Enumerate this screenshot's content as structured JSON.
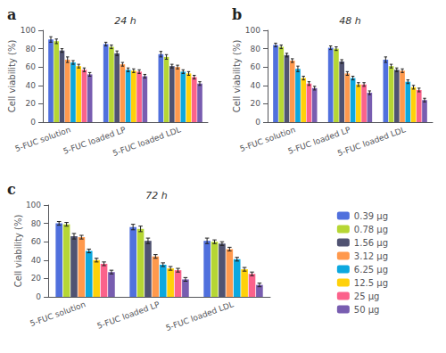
{
  "chart_data": [
    {
      "type": "bar",
      "title": "24 h",
      "annotations": [
        "a"
      ],
      "ylabel": "Cell viability (%)",
      "categories": [
        "5-FUC solution",
        "5-FUC loaded LP",
        "5-FUC loaded LDL"
      ],
      "series": [
        {
          "name": "0.39 μg",
          "values": [
            90,
            85,
            74
          ],
          "errors": [
            3,
            2,
            3
          ]
        },
        {
          "name": "0.78 μg",
          "values": [
            88,
            82,
            71
          ],
          "errors": [
            2.5,
            2,
            2.5
          ]
        },
        {
          "name": "1.56 μg",
          "values": [
            78,
            75,
            61
          ],
          "errors": [
            2,
            2.5,
            2
          ]
        },
        {
          "name": "3.12 μg",
          "values": [
            68,
            63,
            60
          ],
          "errors": [
            3,
            2,
            2
          ]
        },
        {
          "name": "6.25 μg",
          "values": [
            65,
            57,
            55
          ],
          "errors": [
            2,
            2,
            2
          ]
        },
        {
          "name": "12.5 μg",
          "values": [
            61,
            56,
            53
          ],
          "errors": [
            2,
            2,
            2
          ]
        },
        {
          "name": "25 μg",
          "values": [
            57,
            55,
            49
          ],
          "errors": [
            2,
            2,
            2
          ]
        },
        {
          "name": "50 μg",
          "values": [
            52,
            50,
            42
          ],
          "errors": [
            2,
            2,
            2
          ]
        }
      ],
      "ylim": [
        0,
        100
      ],
      "yticks": [
        0,
        20,
        40,
        60,
        80,
        100
      ],
      "grid": false,
      "legend": "right"
    },
    {
      "type": "bar",
      "title": "48 h",
      "annotations": [
        "b"
      ],
      "ylabel": "Cell viability (%)",
      "categories": [
        "5-FUC solution",
        "5-FUC loaded LP",
        "5-FUC loaded LDL"
      ],
      "series": [
        {
          "name": "0.39 μg",
          "values": [
            84,
            81,
            68
          ],
          "errors": [
            2,
            2,
            3
          ]
        },
        {
          "name": "0.78 μg",
          "values": [
            82,
            80,
            61
          ],
          "errors": [
            2,
            2,
            2
          ]
        },
        {
          "name": "1.56 μg",
          "values": [
            73,
            66,
            57
          ],
          "errors": [
            2,
            2,
            2
          ]
        },
        {
          "name": "3.12 μg",
          "values": [
            67,
            53,
            56
          ],
          "errors": [
            2,
            2,
            2
          ]
        },
        {
          "name": "6.25 μg",
          "values": [
            58,
            48,
            44
          ],
          "errors": [
            3,
            2,
            2
          ]
        },
        {
          "name": "12.5 μg",
          "values": [
            48,
            41,
            38
          ],
          "errors": [
            2,
            2,
            2
          ]
        },
        {
          "name": "25 μg",
          "values": [
            42,
            41,
            35
          ],
          "errors": [
            2,
            2,
            2
          ]
        },
        {
          "name": "50 μg",
          "values": [
            37,
            32,
            24
          ],
          "errors": [
            2,
            2,
            2
          ]
        }
      ],
      "ylim": [
        0,
        100
      ],
      "yticks": [
        0,
        20,
        40,
        60,
        80,
        100
      ],
      "grid": false,
      "legend": "right"
    },
    {
      "type": "bar",
      "title": "72 h",
      "annotations": [
        "c"
      ],
      "ylabel": "Cell viability (%)",
      "categories": [
        "5-FUC solution",
        "5-FUC loaded LP",
        "5-FUC loaded LDL"
      ],
      "series": [
        {
          "name": "0.39 μg",
          "values": [
            80,
            76,
            61
          ],
          "errors": [
            2,
            3,
            3
          ]
        },
        {
          "name": "0.78 μg",
          "values": [
            79,
            74,
            60
          ],
          "errors": [
            2,
            3,
            2
          ]
        },
        {
          "name": "1.56 μg",
          "values": [
            66,
            61,
            58
          ],
          "errors": [
            3,
            3,
            2
          ]
        },
        {
          "name": "3.12 μg",
          "values": [
            65,
            44,
            52
          ],
          "errors": [
            2,
            2,
            2
          ]
        },
        {
          "name": "6.25 μg",
          "values": [
            50,
            35,
            41
          ],
          "errors": [
            2,
            2,
            2
          ]
        },
        {
          "name": "12.5 μg",
          "values": [
            40,
            31,
            30
          ],
          "errors": [
            2,
            2,
            2
          ]
        },
        {
          "name": "25 μg",
          "values": [
            36,
            29,
            25
          ],
          "errors": [
            2,
            2,
            2
          ]
        },
        {
          "name": "50 μg",
          "values": [
            27,
            19,
            13
          ],
          "errors": [
            2,
            2,
            2
          ]
        }
      ],
      "ylim": [
        0,
        100
      ],
      "yticks": [
        0,
        20,
        40,
        60,
        80,
        100
      ],
      "grid": false,
      "legend": "right"
    }
  ]
}
